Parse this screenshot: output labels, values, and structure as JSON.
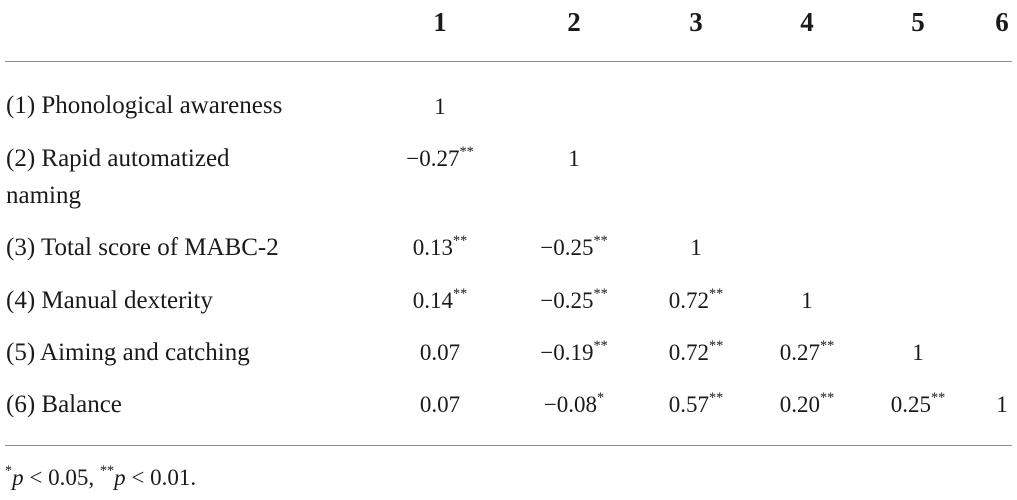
{
  "table": {
    "columns": [
      "1",
      "2",
      "3",
      "4",
      "5",
      "6"
    ],
    "rows": [
      {
        "label": "(1) Phonological awareness",
        "cells": [
          {
            "v": "1",
            "s": ""
          }
        ]
      },
      {
        "label_line1": "(2) Rapid automatized",
        "label_line2": "naming",
        "cells": [
          {
            "v": "−0.27",
            "s": "**"
          },
          {
            "v": "1",
            "s": ""
          }
        ]
      },
      {
        "label": "(3) Total score of MABC-2",
        "cells": [
          {
            "v": "0.13",
            "s": "**"
          },
          {
            "v": "−0.25",
            "s": "**"
          },
          {
            "v": "1",
            "s": ""
          }
        ]
      },
      {
        "label": "(4) Manual dexterity",
        "cells": [
          {
            "v": "0.14",
            "s": "**"
          },
          {
            "v": "−0.25",
            "s": "**"
          },
          {
            "v": "0.72",
            "s": "**"
          },
          {
            "v": "1",
            "s": ""
          }
        ]
      },
      {
        "label": "(5) Aiming and catching",
        "cells": [
          {
            "v": "0.07",
            "s": ""
          },
          {
            "v": "−0.19",
            "s": "**"
          },
          {
            "v": "0.72",
            "s": "**"
          },
          {
            "v": "0.27",
            "s": "**"
          },
          {
            "v": "1",
            "s": ""
          }
        ]
      },
      {
        "label": "(6) Balance",
        "cells": [
          {
            "v": "0.07",
            "s": ""
          },
          {
            "v": "−0.08",
            "s": "*"
          },
          {
            "v": "0.57",
            "s": "**"
          },
          {
            "v": "0.20",
            "s": "**"
          },
          {
            "v": "0.25",
            "s": "**"
          },
          {
            "v": "1",
            "s": ""
          }
        ]
      }
    ]
  },
  "footnote": {
    "star1": "*",
    "p1": "p",
    "text1": " < 0.05, ",
    "star2": "**",
    "p2": "p",
    "text2": " < 0.01."
  }
}
